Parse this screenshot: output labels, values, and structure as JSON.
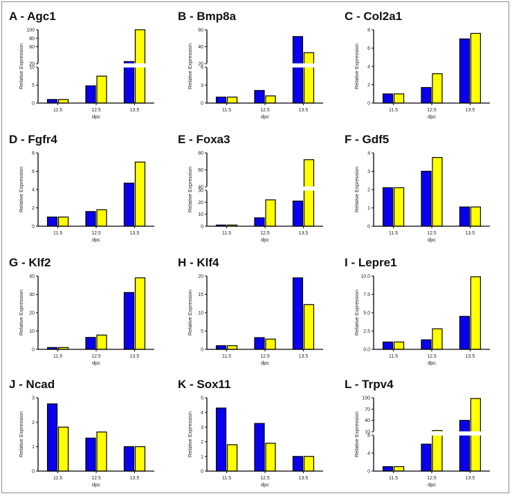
{
  "chart_data": [
    {
      "letter": "A",
      "title": "Agc1",
      "type": "bar",
      "categories": [
        "11.5",
        "12.5",
        "13.5"
      ],
      "series": [
        {
          "color": "#0a00ee",
          "values": [
            1,
            4.8,
            25
          ]
        },
        {
          "color": "#ffff00",
          "values": [
            1,
            7.5,
            100
          ]
        }
      ],
      "ylabel": "Relative Expression",
      "xlabel": "dpc",
      "axis_break": {
        "lower": [
          0,
          10
        ],
        "upper": [
          20,
          100
        ],
        "lower_ticks": [
          0,
          5,
          10
        ],
        "upper_ticks": [
          20,
          60,
          80,
          100
        ]
      }
    },
    {
      "letter": "B",
      "title": "Bmp8a",
      "type": "bar",
      "categories": [
        "11.5",
        "12.5",
        "13.5"
      ],
      "series": [
        {
          "color": "#0a00ee",
          "values": [
            1,
            2.1,
            52
          ]
        },
        {
          "color": "#ffff00",
          "values": [
            1,
            1.2,
            33
          ]
        }
      ],
      "ylabel": "Relative Expression",
      "xlabel": "dpc",
      "axis_break": {
        "lower": [
          0,
          6
        ],
        "upper": [
          20,
          60
        ],
        "lower_ticks": [
          0,
          3,
          6
        ],
        "upper_ticks": [
          20,
          40,
          60
        ]
      }
    },
    {
      "letter": "C",
      "title": "Col2a1",
      "type": "bar",
      "categories": [
        "11.5",
        "12.5",
        "13.5"
      ],
      "series": [
        {
          "color": "#0a00ee",
          "values": [
            1,
            1.7,
            7
          ]
        },
        {
          "color": "#ffff00",
          "values": [
            1,
            3.2,
            7.6
          ]
        }
      ],
      "ylabel": "Relative Expression",
      "xlabel": "dpc",
      "ylim": [
        0,
        8
      ],
      "yticks": [
        0,
        2,
        4,
        6,
        8
      ]
    },
    {
      "letter": "D",
      "title": "Fgfr4",
      "type": "bar",
      "categories": [
        "11.5",
        "12.5",
        "13.5"
      ],
      "series": [
        {
          "color": "#0a00ee",
          "values": [
            1,
            1.6,
            4.7
          ]
        },
        {
          "color": "#ffff00",
          "values": [
            1,
            1.8,
            7
          ]
        }
      ],
      "ylabel": "Relative Expression",
      "xlabel": "dpc",
      "ylim": [
        0,
        8
      ],
      "yticks": [
        0,
        2,
        4,
        6,
        8
      ]
    },
    {
      "letter": "E",
      "title": "Foxa3",
      "type": "bar",
      "categories": [
        "11.5",
        "12.5",
        "13.5"
      ],
      "series": [
        {
          "color": "#0a00ee",
          "values": [
            1,
            7,
            21
          ]
        },
        {
          "color": "#ffff00",
          "values": [
            1,
            22,
            72
          ]
        }
      ],
      "ylabel": "Relative Expression",
      "xlabel": "dpc",
      "axis_break": {
        "lower": [
          0,
          30
        ],
        "upper": [
          40,
          80
        ],
        "lower_ticks": [
          0,
          10,
          20,
          30
        ],
        "upper_ticks": [
          40,
          60,
          80
        ]
      }
    },
    {
      "letter": "F",
      "title": "Gdf5",
      "type": "bar",
      "categories": [
        "11.5",
        "12.5",
        "13.5"
      ],
      "series": [
        {
          "color": "#0a00ee",
          "values": [
            2.1,
            3,
            1.05
          ]
        },
        {
          "color": "#ffff00",
          "values": [
            2.1,
            3.75,
            1.05
          ]
        }
      ],
      "ylabel": "Relative Expression",
      "xlabel": "dpc",
      "ylim": [
        0,
        4
      ],
      "yticks": [
        0,
        1,
        2,
        3,
        4
      ]
    },
    {
      "letter": "G",
      "title": "Klf2",
      "type": "bar",
      "categories": [
        "11.5",
        "12.5",
        "13.5"
      ],
      "series": [
        {
          "color": "#0a00ee",
          "values": [
            1,
            6.5,
            31
          ]
        },
        {
          "color": "#ffff00",
          "values": [
            1,
            7.8,
            39
          ]
        }
      ],
      "ylabel": "Relative Expression",
      "xlabel": "dpc",
      "ylim": [
        0,
        40
      ],
      "yticks": [
        0,
        10,
        20,
        30,
        40
      ]
    },
    {
      "letter": "H",
      "title": "Klf4",
      "type": "bar",
      "categories": [
        "11.5",
        "12.5",
        "13.5"
      ],
      "series": [
        {
          "color": "#0a00ee",
          "values": [
            1,
            3.2,
            19.5
          ]
        },
        {
          "color": "#ffff00",
          "values": [
            1,
            2.8,
            12.2
          ]
        }
      ],
      "ylabel": "Relative Expression",
      "xlabel": "dpc",
      "ylim": [
        0,
        20
      ],
      "yticks": [
        0,
        5,
        10,
        15,
        20
      ]
    },
    {
      "letter": "I",
      "title": "Lepre1",
      "type": "bar",
      "categories": [
        "11.5",
        "12.5",
        "13.5"
      ],
      "series": [
        {
          "color": "#0a00ee",
          "values": [
            1,
            1.3,
            4.5
          ]
        },
        {
          "color": "#ffff00",
          "values": [
            1,
            2.8,
            9.9
          ]
        }
      ],
      "ylabel": "Relative Expression",
      "xlabel": "dpc",
      "ylim": [
        0,
        10
      ],
      "yticks": [
        0,
        2.5,
        5,
        7.5,
        10
      ],
      "ytick_labels": [
        "0.0",
        "2.5",
        "5.0",
        "7.5",
        "10.0"
      ]
    },
    {
      "letter": "J",
      "title": "Ncad",
      "type": "bar",
      "categories": [
        "11.5",
        "12.5",
        "13.5"
      ],
      "series": [
        {
          "color": "#0a00ee",
          "values": [
            2.75,
            1.35,
            1
          ]
        },
        {
          "color": "#ffff00",
          "values": [
            1.8,
            1.6,
            1
          ]
        }
      ],
      "ylabel": "Relative Expression",
      "xlabel": "dpc",
      "ylim": [
        0,
        3
      ],
      "yticks": [
        0,
        1,
        2,
        3
      ]
    },
    {
      "letter": "K",
      "title": "Sox11",
      "type": "bar",
      "categories": [
        "11.5",
        "12.5",
        "13.5"
      ],
      "series": [
        {
          "color": "#0a00ee",
          "values": [
            4.3,
            3.25,
            1
          ]
        },
        {
          "color": "#ffff00",
          "values": [
            1.8,
            1.9,
            1
          ]
        }
      ],
      "ylabel": "Relative Expression",
      "xlabel": "dpc",
      "ylim": [
        0,
        5
      ],
      "yticks": [
        0,
        1,
        2,
        3,
        4,
        5
      ]
    },
    {
      "letter": "L",
      "title": "Trpv4",
      "type": "bar",
      "categories": [
        "11.5",
        "12.5",
        "13.5"
      ],
      "series": [
        {
          "color": "#0a00ee",
          "values": [
            1,
            6,
            40
          ]
        },
        {
          "color": "#ffff00",
          "values": [
            1,
            13,
            98
          ]
        }
      ],
      "ylabel": "Relative Expression",
      "xlabel": "dpc",
      "axis_break": {
        "lower": [
          0,
          8
        ],
        "upper": [
          10,
          100
        ],
        "lower_ticks": [
          0,
          4,
          8
        ],
        "upper_ticks": [
          10,
          40,
          70,
          100
        ]
      }
    }
  ]
}
